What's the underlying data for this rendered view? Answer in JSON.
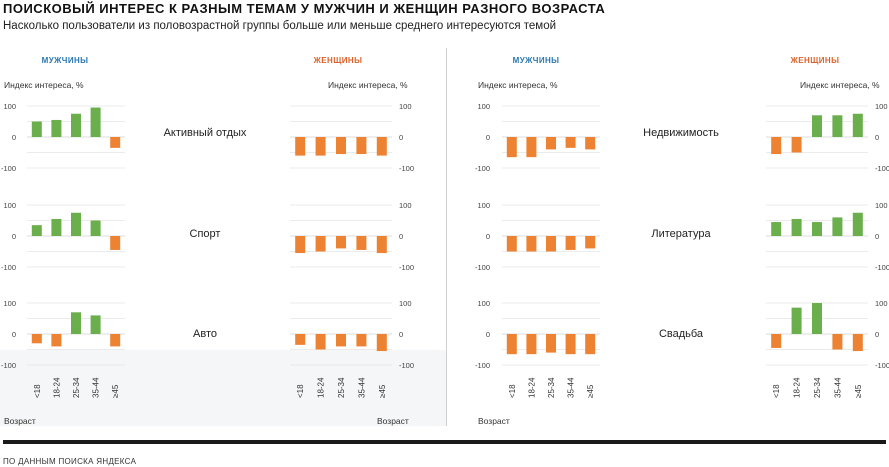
{
  "title": "ПОИСКОВЫЙ ИНТЕРЕС К РАЗНЫМ ТЕМАМ У МУЖЧИН И ЖЕНЩИН РАЗНОГО ВОЗРАСТА",
  "subtitle": "Насколько пользователи из половозрастной группы больше или меньше среднего интересуются темой",
  "source": "ПО ДАННЫМ ПОИСКА ЯНДЕКСА",
  "labels": {
    "men": "МУЖЧИНЫ",
    "women": "ЖЕНЩИНЫ",
    "ylabel": "Индекс интереса, %",
    "xlabel": "Возраст"
  },
  "colors": {
    "positive": "#6aaf4c",
    "negative": "#ec8232",
    "men_label": "#2a77b0",
    "women_label": "#d9622b"
  },
  "chart_data": {
    "type": "bar",
    "categories": [
      "<18",
      "18-24",
      "25-34",
      "35-44",
      "≥45"
    ],
    "ylim": [
      -100,
      100
    ],
    "yticks": [
      100,
      0,
      -100
    ],
    "grid": true,
    "panels": [
      {
        "topic": "Активный отдых",
        "men": [
          50,
          55,
          75,
          95,
          -35
        ],
        "women": [
          -60,
          -60,
          -55,
          -55,
          -60
        ]
      },
      {
        "topic": "Спорт",
        "men": [
          35,
          55,
          75,
          50,
          -45
        ],
        "women": [
          -55,
          -50,
          -40,
          -45,
          -55
        ]
      },
      {
        "topic": "Авто",
        "men": [
          -30,
          -40,
          70,
          60,
          -40
        ],
        "women": [
          -35,
          -50,
          -40,
          -40,
          -55
        ]
      },
      {
        "topic": "Недвижимость",
        "men": [
          -65,
          -65,
          -40,
          -35,
          -40
        ],
        "women": [
          -55,
          -50,
          70,
          70,
          75
        ]
      },
      {
        "topic": "Литература",
        "men": [
          -50,
          -50,
          -50,
          -45,
          -40
        ],
        "women": [
          45,
          55,
          45,
          60,
          75
        ]
      },
      {
        "topic": "Свадьба",
        "men": [
          -65,
          -65,
          -60,
          -65,
          -65
        ],
        "women": [
          -45,
          85,
          100,
          -50,
          -55
        ]
      }
    ]
  }
}
